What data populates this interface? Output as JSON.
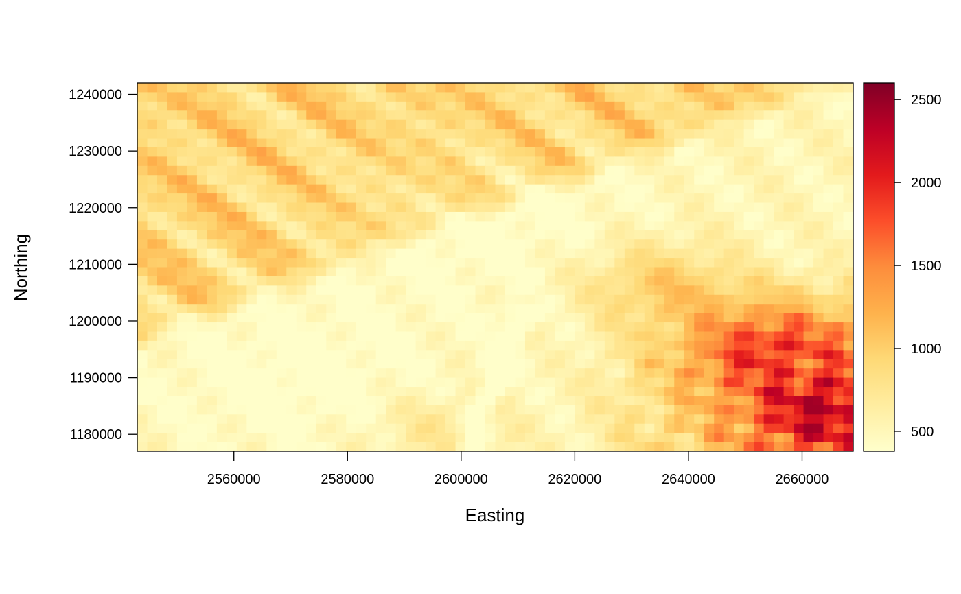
{
  "chart_data": {
    "type": "heatmap",
    "xlabel": "Easting",
    "ylabel": "Northing",
    "xlim": [
      2543000,
      2669000
    ],
    "ylim": [
      1177000,
      1242000
    ],
    "x_ticks": [
      2560000,
      2580000,
      2600000,
      2620000,
      2640000,
      2660000
    ],
    "x_tick_labels": [
      "2560000",
      "2580000",
      "2600000",
      "2620000",
      "2640000",
      "2660000"
    ],
    "y_ticks": [
      1180000,
      1190000,
      1200000,
      1210000,
      1220000,
      1230000,
      1240000
    ],
    "y_tick_labels": [
      "1180000",
      "1190000",
      "1200000",
      "1210000",
      "1220000",
      "1230000",
      "1240000"
    ],
    "colorbar": {
      "range": [
        380,
        2600
      ],
      "ticks": [
        500,
        1000,
        1500,
        2000,
        2500
      ],
      "tick_labels": [
        "500",
        "1000",
        "1500",
        "2000",
        "2500"
      ],
      "palette": [
        "#FFFFCC",
        "#FFEDA0",
        "#FED976",
        "#FEB24C",
        "#FD8D3C",
        "#FC4E2A",
        "#E31A1C",
        "#BD0026",
        "#800026"
      ]
    }
  }
}
